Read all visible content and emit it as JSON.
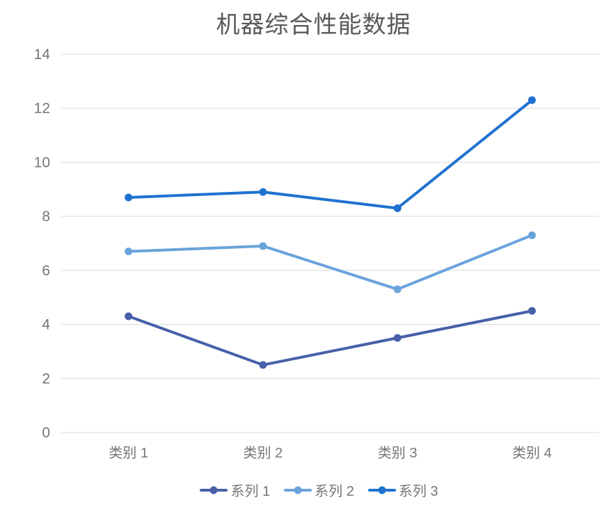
{
  "chart_data": {
    "type": "line",
    "title": "机器综合性能数据",
    "categories": [
      "类别 1",
      "类别 2",
      "类别 3",
      "类别 4"
    ],
    "series": [
      {
        "name": "系列 1",
        "color": "#4760a9",
        "values": [
          4.3,
          2.5,
          3.5,
          4.5
        ]
      },
      {
        "name": "系列 2",
        "color": "#6aa3db",
        "values": [
          6.7,
          6.9,
          5.3,
          7.3
        ]
      },
      {
        "name": "系列 3",
        "color": "#1f72d0",
        "values": [
          8.7,
          8.9,
          8.3,
          12.3
        ]
      }
    ],
    "y_axis": {
      "min": 0,
      "max": 14,
      "step": 2,
      "tick_values": [
        0,
        2,
        4,
        6,
        8,
        10,
        12,
        14
      ]
    },
    "xlabel": "",
    "ylabel": "",
    "grid": "horizontal",
    "legend_position": "bottom",
    "colors": {
      "gridline": "#d9d9d9",
      "tick_label": "#757575",
      "title": "#595959",
      "background": "#ffffff"
    }
  }
}
